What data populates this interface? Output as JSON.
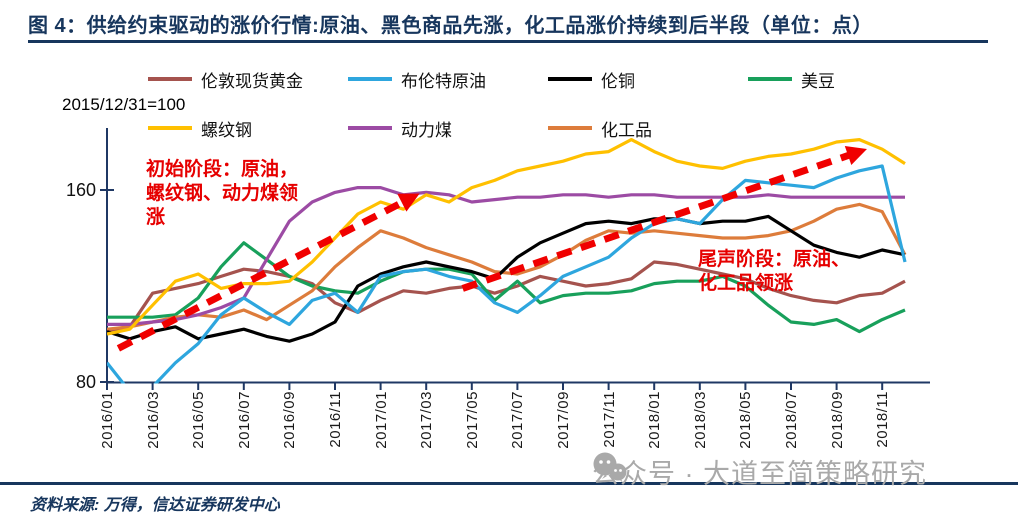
{
  "title": "图 4：供给约束驱动的涨价行情:原油、黑色商品先涨，化工品涨价持续到后半段（单位：点）",
  "axis_note": "2015/12/31=100",
  "colors": {
    "title_navy": "#17365D",
    "axis": "#1F3864",
    "annotation_red": "#E60000",
    "arrow_red": "#F00000",
    "watermark_gray": "#a9a9a9"
  },
  "chart_data": {
    "type": "line",
    "x_start_label": "2016/01",
    "x_tick_labels": [
      "2016/01",
      "2016/03",
      "2016/05",
      "2016/07",
      "2016/09",
      "2016/11",
      "2017/01",
      "2017/03",
      "2017/05",
      "2017/07",
      "2017/09",
      "2017/11",
      "2018/01",
      "2018/03",
      "2018/05",
      "2018/07",
      "2018/09",
      "2018/11"
    ],
    "y_ticks": [
      {
        "label": "160",
        "value": 160
      },
      {
        "label": "80",
        "value": 80
      }
    ],
    "ylim": [
      80,
      186
    ],
    "grid": false,
    "legend_position": "top",
    "series": [
      {
        "name": "伦敦现货黄金",
        "color": "#A5534E",
        "values": [
          101,
          103,
          117,
          119,
          121,
          124,
          127,
          126,
          124,
          121,
          113,
          109,
          114,
          118,
          117,
          119,
          120,
          117,
          120,
          124,
          122,
          120,
          121,
          123,
          130,
          129,
          127,
          125,
          123,
          119,
          116,
          114,
          113,
          116,
          117,
          122
        ]
      },
      {
        "name": "布伦特原油",
        "color": "#2EA6DE",
        "values": [
          88,
          76,
          78,
          88,
          96,
          108,
          115,
          109,
          104,
          114,
          117,
          109,
          124,
          126,
          127,
          124,
          122,
          113,
          109,
          116,
          124,
          128,
          132,
          140,
          146,
          148,
          146,
          156,
          164,
          163,
          162,
          161,
          165,
          168,
          170,
          130
        ]
      },
      {
        "name": "伦铜",
        "color": "#000000",
        "values": [
          101,
          98,
          101,
          103,
          98,
          100,
          102,
          99,
          97,
          100,
          105,
          120,
          125,
          128,
          130,
          128,
          126,
          123,
          132,
          138,
          142,
          146,
          147,
          146,
          148,
          148,
          146,
          147,
          147,
          149,
          143,
          137,
          134,
          132,
          135,
          133
        ]
      },
      {
        "name": "美豆",
        "color": "#18A05B",
        "values": [
          107,
          107,
          107,
          108,
          115,
          128,
          138,
          131,
          124,
          120,
          118,
          117,
          122,
          126,
          127,
          127,
          125,
          114,
          122,
          113,
          116,
          117,
          117,
          118,
          121,
          122,
          122,
          124,
          120,
          112,
          105,
          104,
          106,
          101,
          106,
          110
        ]
      },
      {
        "name": "螺纹钢",
        "color": "#FFC000",
        "values": [
          100,
          102,
          112,
          122,
          125,
          119,
          121,
          121,
          122,
          130,
          140,
          150,
          155,
          152,
          158,
          155,
          161,
          164,
          168,
          170,
          172,
          175,
          176,
          181,
          176,
          172,
          170,
          169,
          172,
          174,
          175,
          177,
          180,
          181,
          177,
          171
        ]
      },
      {
        "name": "动力煤",
        "color": "#9C4BA4",
        "values": [
          104,
          104,
          105,
          106,
          108,
          111,
          115,
          131,
          147,
          155,
          159,
          161,
          161,
          158,
          159,
          158,
          155,
          156,
          157,
          157,
          158,
          158,
          157,
          158,
          158,
          157,
          157,
          157,
          157,
          158,
          157,
          157,
          157,
          157,
          157,
          157
        ]
      },
      {
        "name": "化工品",
        "color": "#DD7C3B",
        "values": [
          102,
          103,
          105,
          107,
          108,
          107,
          110,
          106,
          112,
          118,
          128,
          136,
          143,
          140,
          136,
          133,
          130,
          126,
          125,
          128,
          133,
          139,
          143,
          142,
          143,
          142,
          141,
          140,
          140,
          141,
          143,
          147,
          152,
          154,
          151,
          133
        ]
      }
    ],
    "annotations": [
      {
        "text": "初始阶段：原油，\n螺纹钢、动力煤领\n涨"
      },
      {
        "text": "尾声阶段：原油、\n化工品领涨"
      }
    ],
    "arrows": [
      {
        "from_month": 0.5,
        "from_value": 94,
        "to_month": 13.4,
        "to_value": 157
      },
      {
        "from_month": 15.6,
        "from_value": 119,
        "to_month": 33.0,
        "to_value": 176
      }
    ]
  },
  "watermark": {
    "icon": "wechat-icon",
    "text": "公众号 · 大道至简策略研究"
  },
  "footer": {
    "source_text": "资料来源: 万得，信达证券研发中心"
  }
}
